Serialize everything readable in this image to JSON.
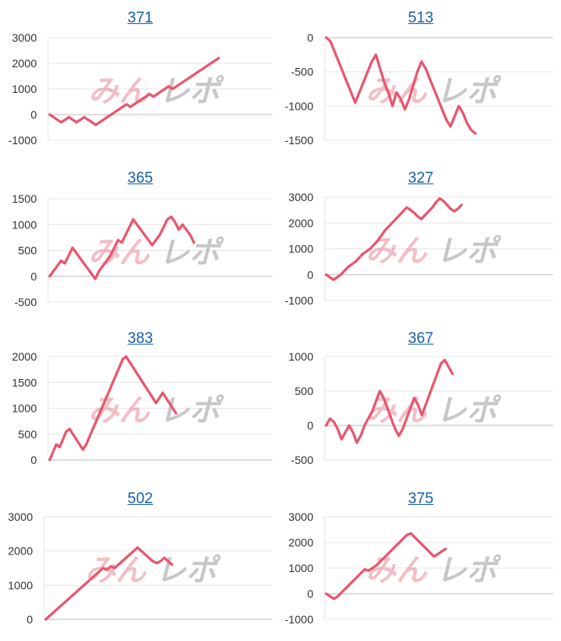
{
  "colors": {
    "series": "#e8566e",
    "grid": "#e6e6e6",
    "axis": "#bdbdbd",
    "title": "#1a5fa8"
  },
  "watermark": {
    "left": "みん",
    "right": "レポ"
  },
  "chart_data": [
    {
      "type": "line",
      "title": "371",
      "ylim": [
        -1000,
        3000
      ],
      "yticks": [
        3000,
        2000,
        1000,
        0,
        -1000
      ],
      "series": [
        {
          "values": [
            0,
            -100,
            -200,
            -300,
            -200,
            -100,
            -200,
            -300,
            -200,
            -100,
            -200,
            -300,
            -400,
            -300,
            -200,
            -100,
            0,
            100,
            200,
            300,
            400,
            300,
            400,
            500,
            600,
            700,
            800,
            700,
            800,
            900,
            1000,
            1100,
            1000,
            1100,
            1200,
            1300,
            1400,
            1500,
            1600,
            1700,
            1800,
            1900,
            2000,
            2100,
            2200
          ]
        }
      ]
    },
    {
      "type": "line",
      "title": "513",
      "ylim": [
        -1500,
        0
      ],
      "yticks": [
        0,
        -500,
        -1000,
        -1500
      ],
      "series": [
        {
          "values": [
            0,
            -50,
            -200,
            -350,
            -500,
            -650,
            -800,
            -950,
            -800,
            -650,
            -500,
            -350,
            -250,
            -450,
            -650,
            -800,
            -1000,
            -800,
            -900,
            -1050,
            -900,
            -700,
            -500,
            -350,
            -450,
            -600,
            -750,
            -900,
            -1050,
            -1200,
            -1300,
            -1150,
            -1000,
            -1100,
            -1250,
            -1350,
            -1400
          ]
        }
      ]
    },
    {
      "type": "line",
      "title": "365",
      "ylim": [
        -500,
        1500
      ],
      "yticks": [
        1500,
        1000,
        500,
        0,
        -500
      ],
      "series": [
        {
          "values": [
            0,
            100,
            200,
            300,
            250,
            400,
            550,
            450,
            350,
            250,
            150,
            50,
            -50,
            100,
            200,
            300,
            400,
            550,
            700,
            650,
            800,
            950,
            1100,
            1000,
            900,
            800,
            700,
            600,
            700,
            800,
            950,
            1100,
            1150,
            1050,
            900,
            1000,
            900,
            800,
            650
          ]
        }
      ]
    },
    {
      "type": "line",
      "title": "327",
      "ylim": [
        -1000,
        3000
      ],
      "yticks": [
        3000,
        2000,
        1000,
        0,
        -1000
      ],
      "series": [
        {
          "values": [
            0,
            -100,
            -200,
            -100,
            0,
            150,
            300,
            400,
            500,
            650,
            800,
            900,
            1000,
            1150,
            1300,
            1500,
            1700,
            1850,
            2000,
            2150,
            2300,
            2450,
            2600,
            2500,
            2400,
            2250,
            2150,
            2300,
            2450,
            2600,
            2800,
            2950,
            2850,
            2700,
            2550,
            2450,
            2550,
            2700
          ]
        }
      ]
    },
    {
      "type": "line",
      "title": "383",
      "ylim": [
        0,
        2000
      ],
      "yticks": [
        2000,
        1500,
        1000,
        500,
        0
      ],
      "series": [
        {
          "values": [
            0,
            150,
            300,
            250,
            400,
            550,
            600,
            500,
            400,
            300,
            200,
            300,
            450,
            600,
            750,
            900,
            1050,
            1200,
            1350,
            1500,
            1650,
            1800,
            1950,
            2000,
            1900,
            1800,
            1700,
            1600,
            1500,
            1400,
            1300,
            1200,
            1100,
            1200,
            1300,
            1200,
            1100,
            1000,
            900
          ]
        }
      ]
    },
    {
      "type": "line",
      "title": "367",
      "ylim": [
        -500,
        1000
      ],
      "yticks": [
        1000,
        500,
        0,
        -500
      ],
      "series": [
        {
          "values": [
            0,
            100,
            50,
            -50,
            -200,
            -100,
            0,
            -100,
            -250,
            -150,
            0,
            100,
            200,
            350,
            500,
            400,
            250,
            100,
            -50,
            -150,
            -50,
            100,
            250,
            400,
            300,
            150,
            300,
            450,
            600,
            750,
            900,
            950,
            850,
            750
          ]
        }
      ]
    },
    {
      "type": "line",
      "title": "502",
      "ylim": [
        0,
        3000
      ],
      "yticks": [
        3000,
        2000,
        1000,
        0
      ],
      "series": [
        {
          "values": [
            0,
            100,
            200,
            300,
            400,
            500,
            600,
            700,
            800,
            900,
            1000,
            1100,
            1200,
            1300,
            1400,
            1500,
            1450,
            1550,
            1500,
            1600,
            1700,
            1800,
            1900,
            2000,
            2100,
            2000,
            1900,
            1800,
            1700,
            1650,
            1700,
            1800,
            1700,
            1600
          ]
        }
      ]
    },
    {
      "type": "line",
      "title": "375",
      "ylim": [
        -1000,
        3000
      ],
      "yticks": [
        3000,
        2000,
        1000,
        0,
        -1000
      ],
      "series": [
        {
          "values": [
            0,
            -100,
            -200,
            -100,
            50,
            200,
            350,
            500,
            650,
            800,
            950,
            900,
            1000,
            1100,
            1250,
            1400,
            1550,
            1700,
            1850,
            2000,
            2150,
            2300,
            2350,
            2200,
            2050,
            1900,
            1750,
            1600,
            1450,
            1550,
            1650,
            1750
          ]
        }
      ]
    }
  ]
}
